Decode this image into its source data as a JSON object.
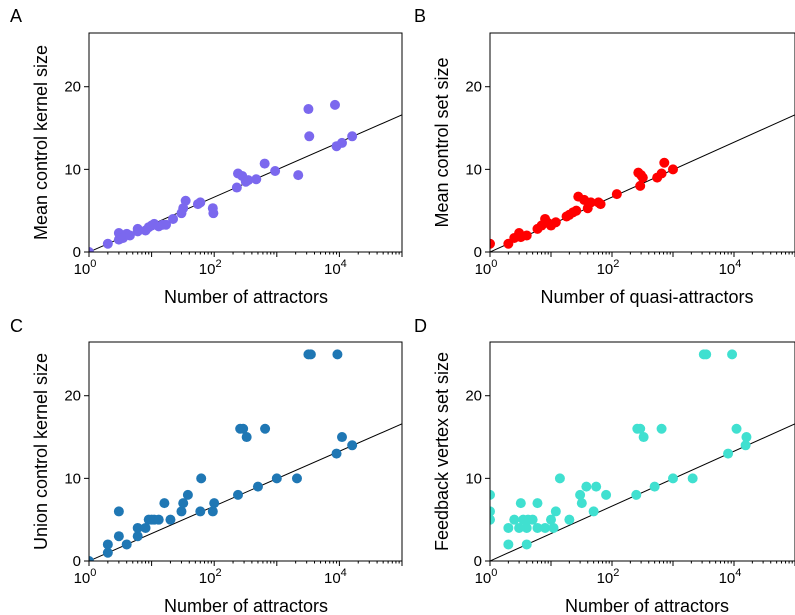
{
  "chart_data": [
    {
      "type": "scatter",
      "panel_label": "A",
      "xlabel": "Number of attractors",
      "ylabel": "Mean control kernel size",
      "xscale": "log",
      "xlim": [
        1,
        100000
      ],
      "ylim": [
        0,
        26.5
      ],
      "x_ticks": [
        {
          "value": 1,
          "base": "10",
          "exp": "0"
        },
        {
          "value": 100,
          "base": "10",
          "exp": "2"
        },
        {
          "value": 10000,
          "base": "10",
          "exp": "4"
        }
      ],
      "y_ticks": [
        0,
        10,
        20
      ],
      "fit_line": {
        "x": [
          1,
          100000
        ],
        "y": [
          0,
          16.6
        ]
      },
      "series": [
        {
          "color": "#7b68ee",
          "points": [
            [
              1,
              0
            ],
            [
              2,
              1
            ],
            [
              3,
              1.5
            ],
            [
              3,
              2.3
            ],
            [
              3.5,
              1.7
            ],
            [
              4,
              2.2
            ],
            [
              4.5,
              2
            ],
            [
              6,
              2.5
            ],
            [
              6,
              2.8
            ],
            [
              8,
              2.6
            ],
            [
              9,
              3
            ],
            [
              10,
              3.2
            ],
            [
              11,
              3.4
            ],
            [
              13,
              3.1
            ],
            [
              15,
              3.3
            ],
            [
              17,
              3.3
            ],
            [
              22,
              4
            ],
            [
              30,
              4.7
            ],
            [
              32,
              5.3
            ],
            [
              35,
              6.2
            ],
            [
              55,
              5.8
            ],
            [
              60,
              6
            ],
            [
              95,
              5.3
            ],
            [
              97,
              4.7
            ],
            [
              230,
              7.8
            ],
            [
              240,
              9.5
            ],
            [
              280,
              9.2
            ],
            [
              320,
              8.5
            ],
            [
              350,
              8.7
            ],
            [
              470,
              8.8
            ],
            [
              640,
              10.7
            ],
            [
              940,
              9.8
            ],
            [
              2200,
              9.3
            ],
            [
              3200,
              17.3
            ],
            [
              3300,
              14
            ],
            [
              8500,
              17.8
            ],
            [
              9000,
              12.8
            ],
            [
              11000,
              13.2
            ],
            [
              16000,
              14
            ]
          ]
        }
      ]
    },
    {
      "type": "scatter",
      "panel_label": "B",
      "xlabel": "Number of quasi-attractors",
      "ylabel": "Mean control set size",
      "xscale": "log",
      "xlim": [
        1,
        100000
      ],
      "ylim": [
        0,
        26.5
      ],
      "x_ticks": [
        {
          "value": 1,
          "base": "10",
          "exp": "0"
        },
        {
          "value": 100,
          "base": "10",
          "exp": "2"
        },
        {
          "value": 10000,
          "base": "10",
          "exp": "4"
        }
      ],
      "y_ticks": [
        0,
        10,
        20
      ],
      "fit_line": {
        "x": [
          1,
          100000
        ],
        "y": [
          0,
          16.6
        ]
      },
      "series": [
        {
          "color": "#ff0000",
          "points": [
            [
              1,
              1
            ],
            [
              2,
              1
            ],
            [
              2.5,
              1.7
            ],
            [
              3,
              2.3
            ],
            [
              3.2,
              1.8
            ],
            [
              4,
              2
            ],
            [
              6,
              2.8
            ],
            [
              7,
              3.2
            ],
            [
              8,
              4
            ],
            [
              9,
              3.5
            ],
            [
              10,
              3.2
            ],
            [
              12,
              3.6
            ],
            [
              18,
              4.3
            ],
            [
              20,
              4.5
            ],
            [
              23,
              4.8
            ],
            [
              26,
              5
            ],
            [
              28,
              6.7
            ],
            [
              35,
              6.3
            ],
            [
              40,
              5.3
            ],
            [
              45,
              6
            ],
            [
              60,
              6
            ],
            [
              65,
              5.8
            ],
            [
              120,
              7
            ],
            [
              270,
              9.6
            ],
            [
              290,
              8
            ],
            [
              300,
              9.3
            ],
            [
              320,
              9
            ],
            [
              550,
              9
            ],
            [
              650,
              9.5
            ],
            [
              720,
              10.8
            ],
            [
              1000,
              10
            ]
          ]
        }
      ]
    },
    {
      "type": "scatter",
      "panel_label": "C",
      "xlabel": "Number of attractors",
      "ylabel": "Union control kernel size",
      "xscale": "log",
      "xlim": [
        1,
        100000
      ],
      "ylim": [
        0,
        26.5
      ],
      "x_ticks": [
        {
          "value": 1,
          "base": "10",
          "exp": "0"
        },
        {
          "value": 100,
          "base": "10",
          "exp": "2"
        },
        {
          "value": 10000,
          "base": "10",
          "exp": "4"
        }
      ],
      "y_ticks": [
        0,
        10,
        20
      ],
      "fit_line": {
        "x": [
          1,
          100000
        ],
        "y": [
          0,
          16.6
        ]
      },
      "series": [
        {
          "color": "#1f77b4",
          "points": [
            [
              1,
              0
            ],
            [
              2,
              1
            ],
            [
              2,
              2
            ],
            [
              3,
              3
            ],
            [
              3,
              6
            ],
            [
              4,
              2
            ],
            [
              6,
              3
            ],
            [
              6,
              4
            ],
            [
              8,
              4
            ],
            [
              9,
              5
            ],
            [
              10,
              5
            ],
            [
              11,
              5
            ],
            [
              13,
              5
            ],
            [
              16,
              7
            ],
            [
              20,
              5
            ],
            [
              30,
              6
            ],
            [
              32,
              7
            ],
            [
              38,
              8
            ],
            [
              60,
              6
            ],
            [
              62,
              10
            ],
            [
              95,
              6
            ],
            [
              100,
              7
            ],
            [
              240,
              8
            ],
            [
              260,
              16
            ],
            [
              290,
              16
            ],
            [
              330,
              15
            ],
            [
              500,
              9
            ],
            [
              650,
              16
            ],
            [
              1000,
              10
            ],
            [
              2100,
              10
            ],
            [
              3200,
              25
            ],
            [
              3500,
              25
            ],
            [
              9000,
              13
            ],
            [
              9300,
              25
            ],
            [
              11000,
              15
            ],
            [
              16000,
              14
            ]
          ]
        }
      ]
    },
    {
      "type": "scatter",
      "panel_label": "D",
      "xlabel": "Number of attractors",
      "ylabel": "Feedback vertex set size",
      "xscale": "log",
      "xlim": [
        1,
        100000
      ],
      "ylim": [
        0,
        26.5
      ],
      "x_ticks": [
        {
          "value": 1,
          "base": "10",
          "exp": "0"
        },
        {
          "value": 100,
          "base": "10",
          "exp": "2"
        },
        {
          "value": 10000,
          "base": "10",
          "exp": "4"
        }
      ],
      "y_ticks": [
        0,
        10,
        20
      ],
      "fit_line": {
        "x": [
          1,
          100000
        ],
        "y": [
          0,
          16.6
        ]
      },
      "series": [
        {
          "color": "#40e0d0",
          "points": [
            [
              1,
              5
            ],
            [
              1,
              6
            ],
            [
              1,
              8
            ],
            [
              2,
              2
            ],
            [
              2,
              4
            ],
            [
              2.5,
              5
            ],
            [
              3,
              4
            ],
            [
              3.2,
              7
            ],
            [
              3.5,
              5
            ],
            [
              4,
              2
            ],
            [
              4,
              4
            ],
            [
              4.2,
              5
            ],
            [
              5,
              5
            ],
            [
              6,
              4
            ],
            [
              6,
              7
            ],
            [
              8,
              4
            ],
            [
              10,
              5
            ],
            [
              11,
              4
            ],
            [
              12,
              6
            ],
            [
              14,
              10
            ],
            [
              20,
              5
            ],
            [
              30,
              8
            ],
            [
              32,
              7
            ],
            [
              38,
              9
            ],
            [
              50,
              6
            ],
            [
              55,
              9
            ],
            [
              80,
              8
            ],
            [
              250,
              8
            ],
            [
              260,
              16
            ],
            [
              290,
              16
            ],
            [
              330,
              15
            ],
            [
              500,
              9
            ],
            [
              650,
              16
            ],
            [
              1000,
              10
            ],
            [
              2100,
              10
            ],
            [
              3200,
              25
            ],
            [
              3500,
              25
            ],
            [
              8000,
              13
            ],
            [
              9300,
              25
            ],
            [
              11000,
              16
            ],
            [
              15500,
              14
            ],
            [
              16000,
              15
            ]
          ]
        }
      ]
    }
  ]
}
